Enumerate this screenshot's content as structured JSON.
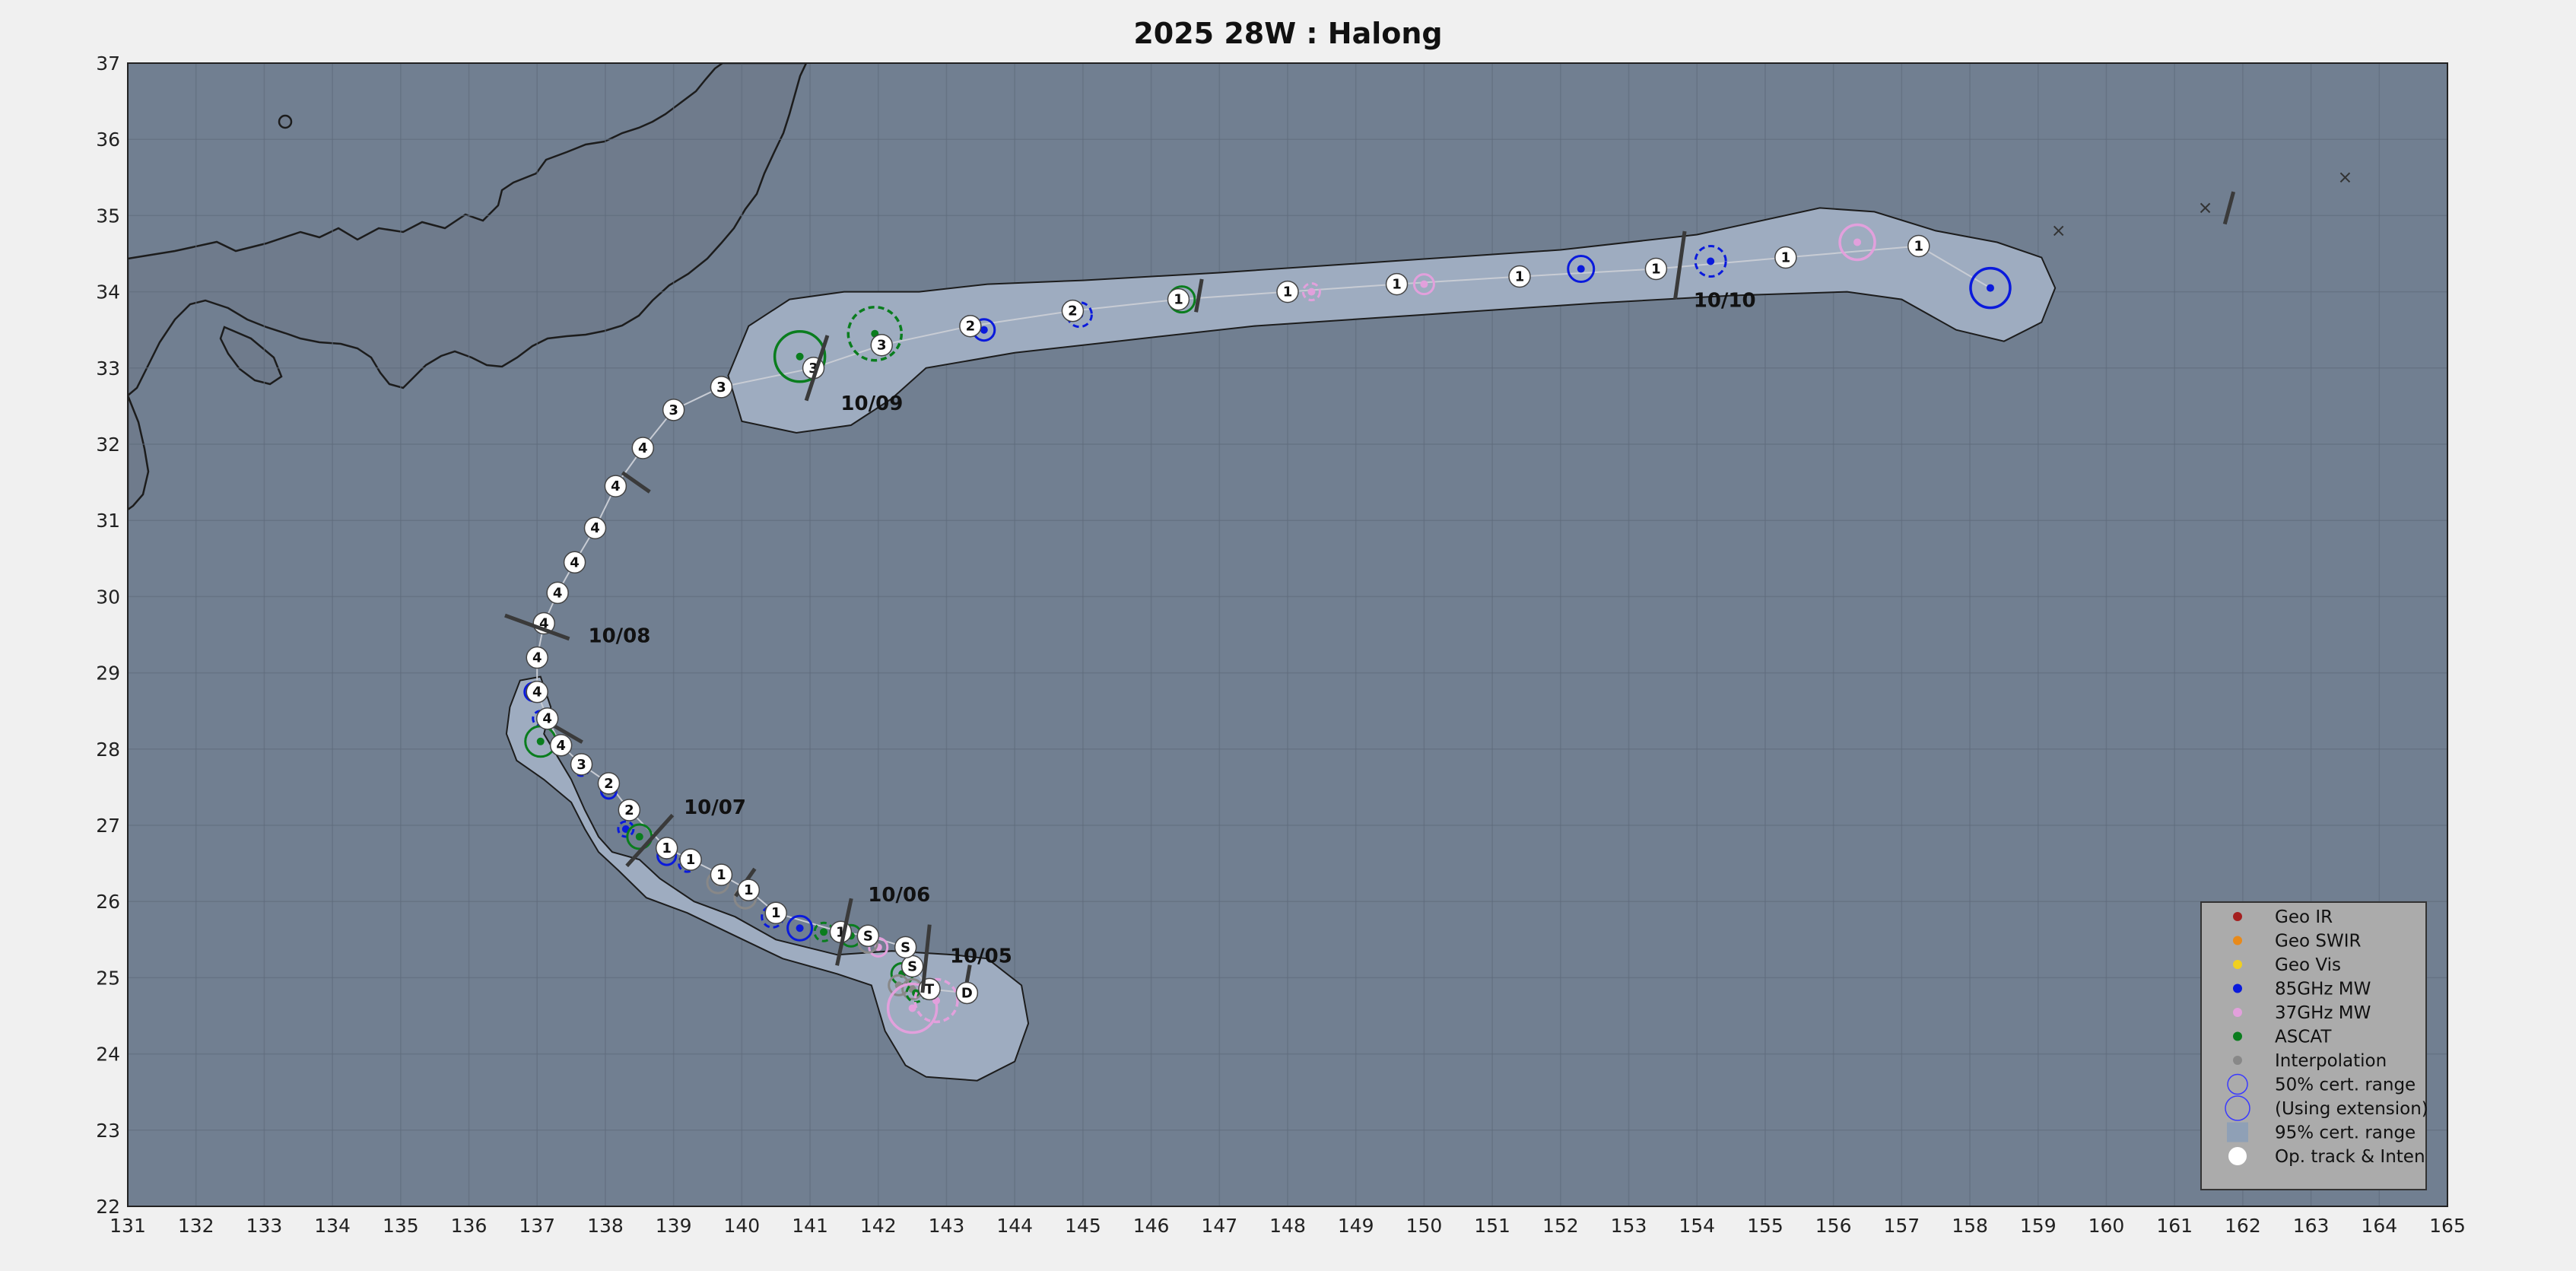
{
  "title": "2025  28W :  Halong",
  "axes": {
    "lon_ticks": [
      "131",
      "132",
      "133",
      "134",
      "135",
      "136",
      "137",
      "138",
      "139",
      "140",
      "141",
      "142",
      "143",
      "144",
      "145",
      "146",
      "147",
      "148",
      "149",
      "150",
      "151",
      "152",
      "153",
      "154",
      "155",
      "156",
      "157",
      "158",
      "159",
      "160",
      "161",
      "162",
      "163",
      "164",
      "165"
    ],
    "lat_ticks": [
      "22",
      "23",
      "24",
      "25",
      "26",
      "27",
      "28",
      "29",
      "30",
      "31",
      "32",
      "33",
      "34",
      "35",
      "36",
      "37"
    ],
    "lon_range": [
      131,
      165
    ],
    "lat_range": [
      22,
      37
    ],
    "grid": true
  },
  "colors": {
    "ocean": "#717f91",
    "land": "#707c8d",
    "cone": "#9eacc0",
    "geo_ir": "#a52020",
    "geo_swir": "#e88a1a",
    "geo_vis": "#f0d020",
    "mw85": "#0a1adc",
    "mw37": "#e2a0dc",
    "ascat": "#0a7d1e",
    "interp": "#888888",
    "optrack": "#ffffff"
  },
  "op_track": [
    {
      "lon": 143.3,
      "lat": 24.8,
      "label": "D"
    },
    {
      "lon": 142.75,
      "lat": 24.85,
      "label": "T"
    },
    {
      "lon": 142.5,
      "lat": 25.15,
      "label": "S"
    },
    {
      "lon": 142.4,
      "lat": 25.4,
      "label": "S"
    },
    {
      "lon": 141.85,
      "lat": 25.55,
      "label": "S"
    },
    {
      "lon": 141.45,
      "lat": 25.6,
      "label": "1"
    },
    {
      "lon": 140.5,
      "lat": 25.85,
      "label": "1"
    },
    {
      "lon": 140.1,
      "lat": 26.15,
      "label": "1"
    },
    {
      "lon": 139.7,
      "lat": 26.35,
      "label": "1"
    },
    {
      "lon": 139.25,
      "lat": 26.55,
      "label": "1"
    },
    {
      "lon": 138.9,
      "lat": 26.7,
      "label": "1"
    },
    {
      "lon": 138.35,
      "lat": 27.2,
      "label": "2"
    },
    {
      "lon": 138.05,
      "lat": 27.55,
      "label": "2"
    },
    {
      "lon": 137.65,
      "lat": 27.8,
      "label": "3"
    },
    {
      "lon": 137.35,
      "lat": 28.05,
      "label": "4"
    },
    {
      "lon": 137.15,
      "lat": 28.4,
      "label": "4"
    },
    {
      "lon": 137.0,
      "lat": 28.75,
      "label": "4"
    },
    {
      "lon": 137.0,
      "lat": 29.2,
      "label": "4"
    },
    {
      "lon": 137.1,
      "lat": 29.65,
      "label": "4"
    },
    {
      "lon": 137.3,
      "lat": 30.05,
      "label": "4"
    },
    {
      "lon": 137.55,
      "lat": 30.45,
      "label": "4"
    },
    {
      "lon": 137.85,
      "lat": 30.9,
      "label": "4"
    },
    {
      "lon": 138.15,
      "lat": 31.45,
      "label": "4"
    },
    {
      "lon": 138.55,
      "lat": 31.95,
      "label": "4"
    },
    {
      "lon": 139.0,
      "lat": 32.45,
      "label": "3"
    },
    {
      "lon": 139.7,
      "lat": 32.75,
      "label": "3"
    },
    {
      "lon": 141.05,
      "lat": 33.0,
      "label": "3"
    },
    {
      "lon": 142.05,
      "lat": 33.3,
      "label": "3"
    },
    {
      "lon": 143.35,
      "lat": 33.55,
      "label": "2"
    },
    {
      "lon": 144.85,
      "lat": 33.75,
      "label": "2"
    },
    {
      "lon": 146.4,
      "lat": 33.9,
      "label": "1"
    },
    {
      "lon": 148.0,
      "lat": 34.0,
      "label": "1"
    },
    {
      "lon": 149.6,
      "lat": 34.1,
      "label": "1"
    },
    {
      "lon": 151.4,
      "lat": 34.2,
      "label": "1"
    },
    {
      "lon": 153.4,
      "lat": 34.3,
      "label": "1"
    },
    {
      "lon": 155.3,
      "lat": 34.45,
      "label": "1"
    },
    {
      "lon": 157.25,
      "lat": 34.6,
      "label": "1"
    }
  ],
  "fixes": [
    {
      "type": "mw85",
      "lon": 158.3,
      "lat": 34.05,
      "r": 26,
      "dashed": false
    },
    {
      "type": "mw85",
      "lon": 154.2,
      "lat": 34.4,
      "r": 20,
      "dashed": true
    },
    {
      "type": "mw85",
      "lon": 152.3,
      "lat": 34.3,
      "r": 17,
      "dashed": false
    },
    {
      "type": "mw37",
      "lon": 156.35,
      "lat": 34.65,
      "r": 23,
      "dashed": false
    },
    {
      "type": "mw37",
      "lon": 150.0,
      "lat": 34.1,
      "r": 13,
      "dashed": false
    },
    {
      "type": "mw37",
      "lon": 148.35,
      "lat": 34.0,
      "r": 11,
      "dashed": true
    },
    {
      "type": "ascat",
      "lon": 146.45,
      "lat": 33.9,
      "r": 17,
      "dashed": false
    },
    {
      "type": "mw85",
      "lon": 144.95,
      "lat": 33.7,
      "r": 16,
      "dashed": true
    },
    {
      "type": "mw85",
      "lon": 143.55,
      "lat": 33.5,
      "r": 14,
      "dashed": false
    },
    {
      "type": "ascat",
      "lon": 141.95,
      "lat": 33.45,
      "r": 35,
      "dashed": true
    },
    {
      "type": "ascat",
      "lon": 140.85,
      "lat": 33.15,
      "r": 33,
      "dashed": false
    },
    {
      "type": "mw85",
      "lon": 136.95,
      "lat": 28.75,
      "r": 12,
      "dashed": false
    },
    {
      "type": "mw85",
      "lon": 137.05,
      "lat": 28.4,
      "r": 10,
      "dashed": true
    },
    {
      "type": "ascat",
      "lon": 137.05,
      "lat": 28.1,
      "r": 20,
      "dashed": false
    },
    {
      "type": "mw85",
      "lon": 137.65,
      "lat": 27.75,
      "r": 10,
      "dashed": true
    },
    {
      "type": "mw85",
      "lon": 138.05,
      "lat": 27.45,
      "r": 10,
      "dashed": false
    },
    {
      "type": "mw85",
      "lon": 138.3,
      "lat": 26.95,
      "r": 10,
      "dashed": true
    },
    {
      "type": "ascat",
      "lon": 138.5,
      "lat": 26.85,
      "r": 16,
      "dashed": false
    },
    {
      "type": "mw85",
      "lon": 138.9,
      "lat": 26.6,
      "r": 12,
      "dashed": false
    },
    {
      "type": "mw85",
      "lon": 139.2,
      "lat": 26.5,
      "r": 11,
      "dashed": true
    },
    {
      "type": "interp",
      "lon": 139.65,
      "lat": 26.25,
      "r": 14,
      "dashed": false
    },
    {
      "type": "interp",
      "lon": 140.05,
      "lat": 26.05,
      "r": 14,
      "dashed": false
    },
    {
      "type": "mw85",
      "lon": 140.45,
      "lat": 25.8,
      "r": 14,
      "dashed": true
    },
    {
      "type": "mw85",
      "lon": 140.85,
      "lat": 25.65,
      "r": 16,
      "dashed": false
    },
    {
      "type": "ascat",
      "lon": 141.2,
      "lat": 25.6,
      "r": 12,
      "dashed": true
    },
    {
      "type": "ascat",
      "lon": 141.6,
      "lat": 25.55,
      "r": 14,
      "dashed": false
    },
    {
      "type": "mw37",
      "lon": 142.0,
      "lat": 25.4,
      "r": 12,
      "dashed": false
    },
    {
      "type": "interp",
      "lon": 141.85,
      "lat": 25.45,
      "r": 12,
      "dashed": false
    },
    {
      "type": "ascat",
      "lon": 142.35,
      "lat": 25.05,
      "r": 14,
      "dashed": false
    },
    {
      "type": "interp",
      "lon": 142.3,
      "lat": 24.9,
      "r": 13,
      "dashed": false
    },
    {
      "type": "interp",
      "lon": 142.5,
      "lat": 24.85,
      "r": 13,
      "dashed": false
    },
    {
      "type": "ascat",
      "lon": 142.55,
      "lat": 24.8,
      "r": 12,
      "dashed": true
    },
    {
      "type": "mw37",
      "lon": 142.5,
      "lat": 24.6,
      "r": 32,
      "dashed": false
    },
    {
      "type": "mw37",
      "lon": 142.85,
      "lat": 24.7,
      "r": 28,
      "dashed": true
    }
  ],
  "date_labels": [
    {
      "text": "10/05",
      "lon": 142.7,
      "lat": 25.25,
      "tlon": 143.05,
      "tlat": 25.2,
      "angle": 84
    },
    {
      "text": "10/06",
      "lon": 141.5,
      "lat": 25.6,
      "tlon": 141.85,
      "tlat": 26.0,
      "angle": 78
    },
    {
      "text": "10/07",
      "lon": 138.65,
      "lat": 26.8,
      "tlon": 139.15,
      "tlat": 27.15,
      "angle": 48
    },
    {
      "text": "10/08",
      "lon": 137.0,
      "lat": 29.6,
      "tlon": 137.75,
      "tlat": 29.4,
      "angle": -20
    },
    {
      "text": "10/09",
      "lon": 141.1,
      "lat": 33.0,
      "tlon": 141.45,
      "tlat": 32.45,
      "angle": 72
    },
    {
      "text": "10/10",
      "lon": 153.75,
      "lat": 34.35,
      "tlon": 153.95,
      "tlat": 33.8,
      "angle": 82
    }
  ],
  "day_ticks": [
    {
      "lon": 143.3,
      "lat": 24.95,
      "angle": 80
    },
    {
      "lon": 140.05,
      "lat": 26.25,
      "angle": 55
    },
    {
      "lon": 137.45,
      "lat": 28.2,
      "angle": -30
    },
    {
      "lon": 138.45,
      "lat": 31.5,
      "angle": -35
    },
    {
      "lon": 146.7,
      "lat": 33.95,
      "angle": 80
    },
    {
      "lon": 161.8,
      "lat": 35.1,
      "angle": 75
    }
  ],
  "ext_points": [
    {
      "lon": 159.3,
      "lat": 34.8
    },
    {
      "lon": 161.45,
      "lat": 35.1
    },
    {
      "lon": 163.5,
      "lat": 35.5
    }
  ],
  "legend": {
    "items": [
      {
        "label": "Geo IR",
        "marker": "geo_ir"
      },
      {
        "label": "Geo SWIR",
        "marker": "geo_swir"
      },
      {
        "label": "Geo Vis",
        "marker": "geo_vis"
      },
      {
        "label": "85GHz MW",
        "marker": "mw85"
      },
      {
        "label": "37GHz MW",
        "marker": "mw37"
      },
      {
        "label": "ASCAT",
        "marker": "ascat"
      },
      {
        "label": "Interpolation",
        "marker": "interp"
      },
      {
        "label": "50% cert. range",
        "marker": "circle50"
      },
      {
        "label": "(Using extension)",
        "marker": "circleext"
      },
      {
        "label": "95% cert. range",
        "marker": "cone"
      },
      {
        "label": "Op. track & Inten",
        "marker": "optrack"
      }
    ]
  }
}
